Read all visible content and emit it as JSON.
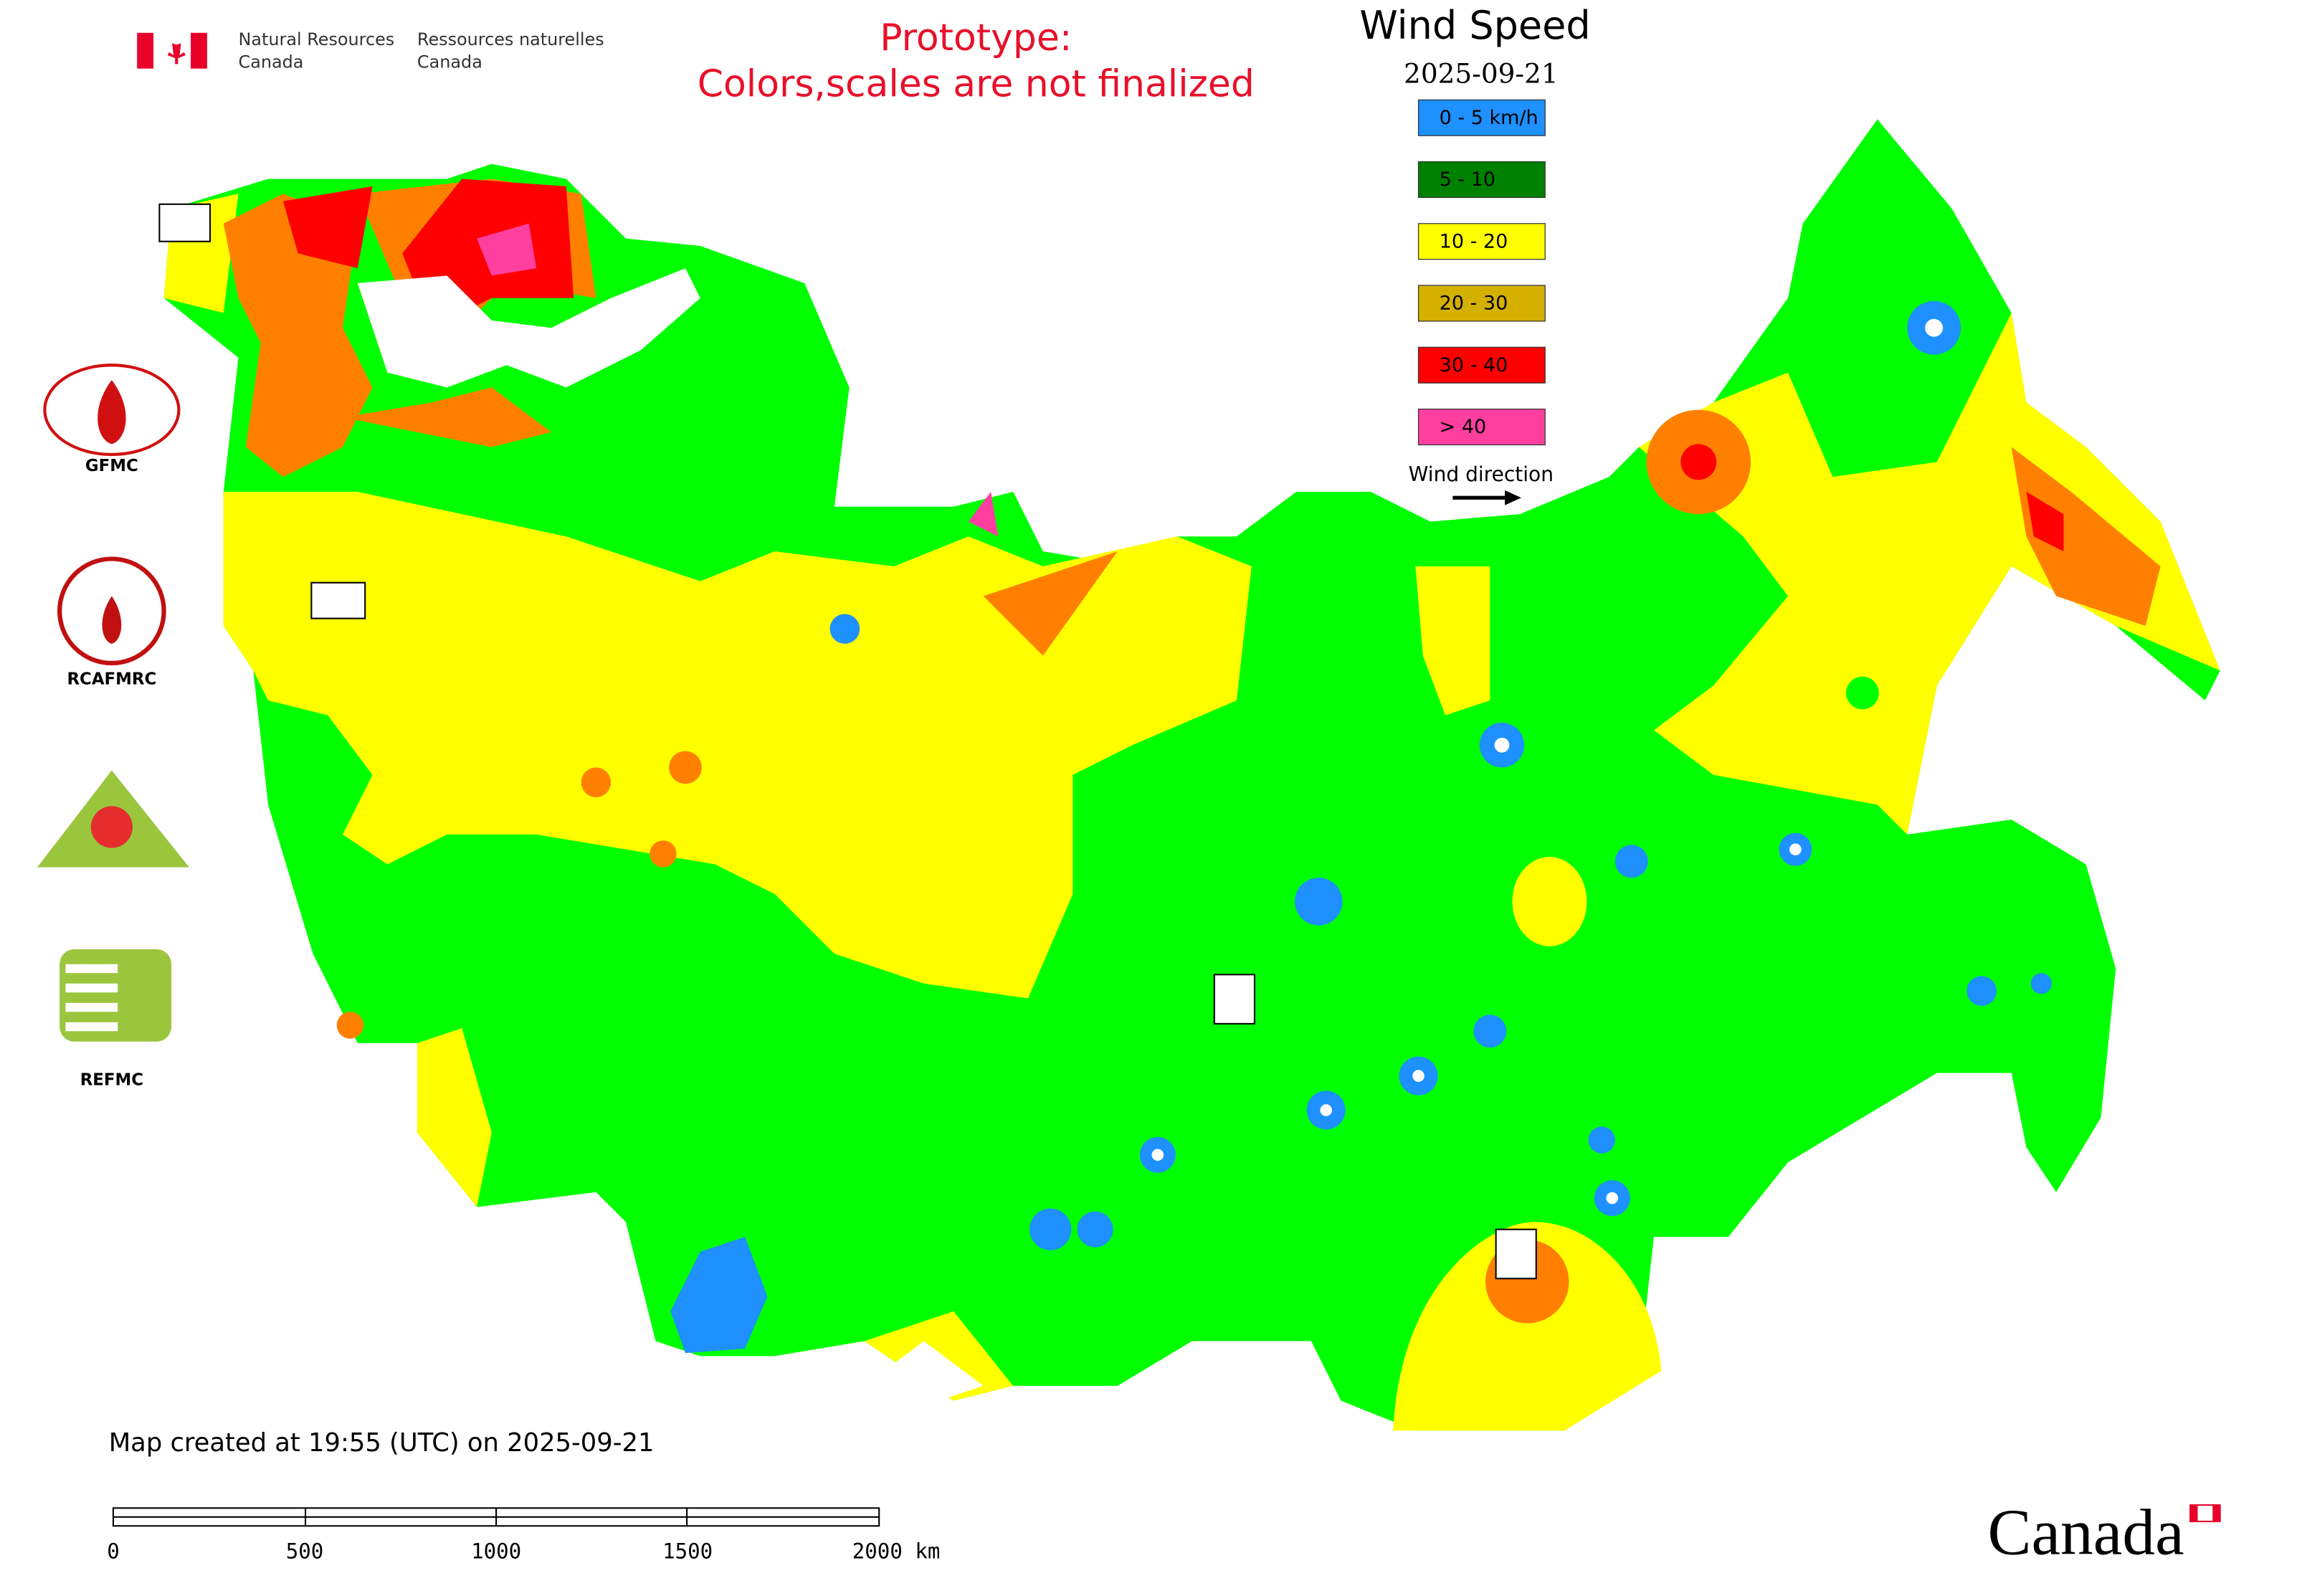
{
  "header": {
    "agency_en": [
      "Natural Resources",
      "Canada"
    ],
    "agency_fr": [
      "Ressources naturelles",
      "Canada"
    ]
  },
  "notice": [
    "Prototype:",
    "Colors,scales are not finalized"
  ],
  "legend": {
    "title": "Wind Speed",
    "date": "2025-09-21",
    "items": [
      {
        "label": "0 - 5 km/h",
        "color": "#1e90ff"
      },
      {
        "label": "5 - 10",
        "color": "#008000"
      },
      {
        "label": "10 - 20",
        "color": "#ffff00"
      },
      {
        "label": "20 - 30",
        "color": "#d4b000"
      },
      {
        "label": "30 - 40",
        "color": "#ff0000"
      },
      {
        "label": "> 40",
        "color": "#ff3fa0"
      }
    ],
    "direction_label": "Wind direction"
  },
  "logos": [
    "GFMC",
    "RCAFMRC",
    "REFMC"
  ],
  "footer": {
    "created": "Map created at 19:55 (UTC) on 2025-09-21",
    "scale_labels": [
      "0",
      "500",
      "1000",
      "1500",
      "2000 km"
    ],
    "wordmark": "Canada"
  }
}
